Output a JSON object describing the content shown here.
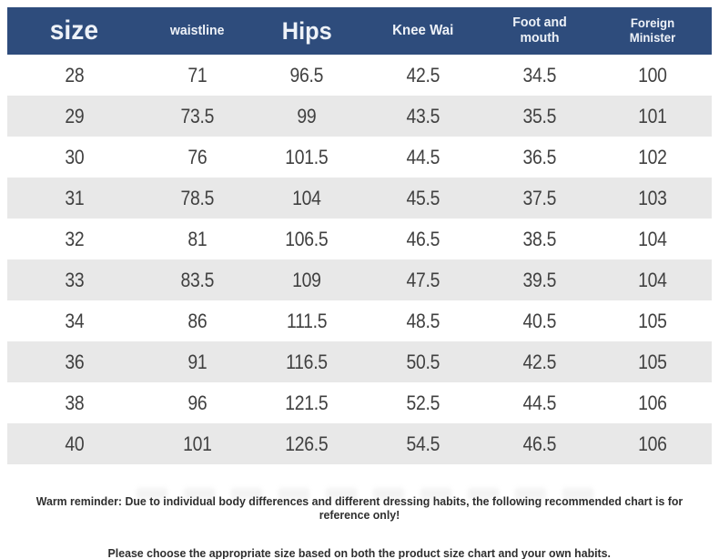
{
  "chart_data": {
    "type": "table",
    "columns": [
      "size",
      "waistline",
      "Hips",
      "Knee Wai",
      "Foot and mouth",
      "Foreign Minister"
    ],
    "rows": [
      [
        "28",
        "71",
        "96.5",
        "42.5",
        "34.5",
        "100"
      ],
      [
        "29",
        "73.5",
        "99",
        "43.5",
        "35.5",
        "101"
      ],
      [
        "30",
        "76",
        "101.5",
        "44.5",
        "36.5",
        "102"
      ],
      [
        "31",
        "78.5",
        "104",
        "45.5",
        "37.5",
        "103"
      ],
      [
        "32",
        "81",
        "106.5",
        "46.5",
        "38.5",
        "104"
      ],
      [
        "33",
        "83.5",
        "109",
        "47.5",
        "39.5",
        "104"
      ],
      [
        "34",
        "86",
        "111.5",
        "48.5",
        "40.5",
        "105"
      ],
      [
        "36",
        "91",
        "116.5",
        "50.5",
        "42.5",
        "105"
      ],
      [
        "38",
        "96",
        "121.5",
        "52.5",
        "44.5",
        "106"
      ],
      [
        "40",
        "101",
        "126.5",
        "54.5",
        "46.5",
        "106"
      ]
    ],
    "title": "",
    "legend_position": "none",
    "grid": "row-stripes"
  },
  "footer": {
    "line1": "Warm reminder: Due to individual body differences and different dressing habits, the following recommended chart is for reference only!",
    "line2": "Please choose the appropriate size based on both the product size chart and your own habits."
  },
  "colors": {
    "header_bg": "#2e4c7c",
    "header_text": "#eef2f8",
    "row_alt_bg": "#e8e8e8",
    "number_text": "#404040",
    "note_text": "#2f2f2f"
  }
}
